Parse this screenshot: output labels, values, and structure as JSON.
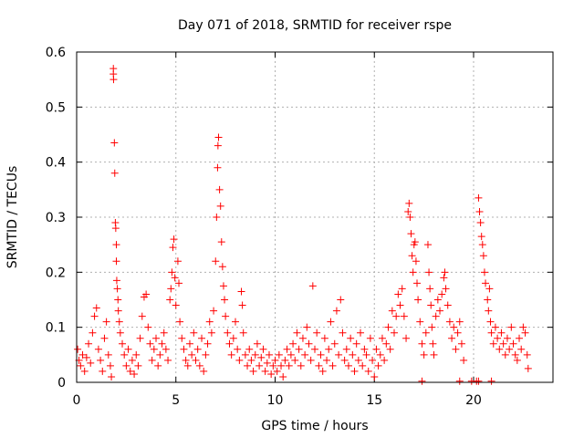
{
  "chart_data": {
    "type": "scatter",
    "title": "Day 071 of 2018, SRMTID for receiver rspe",
    "xlabel": "GPS time / hours",
    "ylabel": "SRMTID / TECUs",
    "xlim": [
      0,
      24
    ],
    "ylim": [
      0,
      0.6
    ],
    "xticks": [
      0,
      5,
      10,
      15,
      20
    ],
    "yticks": [
      0,
      0.1,
      0.2,
      0.3,
      0.4,
      0.5,
      0.6
    ],
    "xtick_labels": [
      "0",
      "5",
      "10",
      "15",
      "20"
    ],
    "ytick_labels": [
      "0",
      "0.1",
      "0.2",
      "0.3",
      "0.4",
      "0.5",
      "0.6"
    ],
    "grid": true,
    "marker": "+",
    "color": "#ff0000",
    "series": [
      {
        "name": "SRMTID",
        "points": [
          [
            0.05,
            0.06
          ],
          [
            0.12,
            0.04
          ],
          [
            0.2,
            0.03
          ],
          [
            0.3,
            0.05
          ],
          [
            0.4,
            0.02
          ],
          [
            0.5,
            0.045
          ],
          [
            0.6,
            0.07
          ],
          [
            0.7,
            0.035
          ],
          [
            0.8,
            0.09
          ],
          [
            0.9,
            0.12
          ],
          [
            1.0,
            0.135
          ],
          [
            1.1,
            0.06
          ],
          [
            1.2,
            0.04
          ],
          [
            1.3,
            0.02
          ],
          [
            1.4,
            0.08
          ],
          [
            1.5,
            0.11
          ],
          [
            1.6,
            0.05
          ],
          [
            1.7,
            0.03
          ],
          [
            1.75,
            0.01
          ],
          [
            1.85,
            0.57
          ],
          [
            1.85,
            0.56
          ],
          [
            1.86,
            0.55
          ],
          [
            1.9,
            0.435
          ],
          [
            1.92,
            0.38
          ],
          [
            1.95,
            0.29
          ],
          [
            1.97,
            0.28
          ],
          [
            2.0,
            0.25
          ],
          [
            2.0,
            0.22
          ],
          [
            2.02,
            0.185
          ],
          [
            2.05,
            0.17
          ],
          [
            2.08,
            0.15
          ],
          [
            2.1,
            0.13
          ],
          [
            2.15,
            0.11
          ],
          [
            2.2,
            0.09
          ],
          [
            2.3,
            0.07
          ],
          [
            2.4,
            0.05
          ],
          [
            2.5,
            0.03
          ],
          [
            2.6,
            0.06
          ],
          [
            2.7,
            0.02
          ],
          [
            2.8,
            0.04
          ],
          [
            2.9,
            0.015
          ],
          [
            3.0,
            0.05
          ],
          [
            3.1,
            0.03
          ],
          [
            3.2,
            0.08
          ],
          [
            3.3,
            0.12
          ],
          [
            3.4,
            0.155
          ],
          [
            3.5,
            0.16
          ],
          [
            3.6,
            0.1
          ],
          [
            3.7,
            0.07
          ],
          [
            3.8,
            0.04
          ],
          [
            3.9,
            0.06
          ],
          [
            4.0,
            0.08
          ],
          [
            4.1,
            0.03
          ],
          [
            4.2,
            0.05
          ],
          [
            4.3,
            0.07
          ],
          [
            4.4,
            0.09
          ],
          [
            4.5,
            0.06
          ],
          [
            4.6,
            0.04
          ],
          [
            4.7,
            0.15
          ],
          [
            4.75,
            0.17
          ],
          [
            4.8,
            0.2
          ],
          [
            4.85,
            0.245
          ],
          [
            4.9,
            0.26
          ],
          [
            4.95,
            0.19
          ],
          [
            5.0,
            0.14
          ],
          [
            5.1,
            0.22
          ],
          [
            5.15,
            0.18
          ],
          [
            5.2,
            0.11
          ],
          [
            5.3,
            0.08
          ],
          [
            5.4,
            0.06
          ],
          [
            5.5,
            0.04
          ],
          [
            5.6,
            0.03
          ],
          [
            5.7,
            0.07
          ],
          [
            5.8,
            0.05
          ],
          [
            5.9,
            0.09
          ],
          [
            6.0,
            0.04
          ],
          [
            6.1,
            0.06
          ],
          [
            6.2,
            0.03
          ],
          [
            6.3,
            0.08
          ],
          [
            6.4,
            0.02
          ],
          [
            6.5,
            0.05
          ],
          [
            6.6,
            0.07
          ],
          [
            6.7,
            0.11
          ],
          [
            6.8,
            0.09
          ],
          [
            6.9,
            0.13
          ],
          [
            7.0,
            0.22
          ],
          [
            7.05,
            0.3
          ],
          [
            7.1,
            0.39
          ],
          [
            7.12,
            0.43
          ],
          [
            7.15,
            0.445
          ],
          [
            7.2,
            0.35
          ],
          [
            7.25,
            0.32
          ],
          [
            7.3,
            0.255
          ],
          [
            7.35,
            0.21
          ],
          [
            7.4,
            0.175
          ],
          [
            7.45,
            0.15
          ],
          [
            7.5,
            0.12
          ],
          [
            7.6,
            0.09
          ],
          [
            7.7,
            0.07
          ],
          [
            7.8,
            0.05
          ],
          [
            7.9,
            0.08
          ],
          [
            8.0,
            0.11
          ],
          [
            8.1,
            0.06
          ],
          [
            8.2,
            0.04
          ],
          [
            8.3,
            0.165
          ],
          [
            8.35,
            0.14
          ],
          [
            8.4,
            0.09
          ],
          [
            8.5,
            0.05
          ],
          [
            8.6,
            0.03
          ],
          [
            8.7,
            0.06
          ],
          [
            8.8,
            0.04
          ],
          [
            8.9,
            0.02
          ],
          [
            9.0,
            0.05
          ],
          [
            9.1,
            0.07
          ],
          [
            9.2,
            0.03
          ],
          [
            9.3,
            0.045
          ],
          [
            9.4,
            0.06
          ],
          [
            9.5,
            0.02
          ],
          [
            9.6,
            0.035
          ],
          [
            9.7,
            0.05
          ],
          [
            9.8,
            0.015
          ],
          [
            9.9,
            0.03
          ],
          [
            10.0,
            0.04
          ],
          [
            10.1,
            0.02
          ],
          [
            10.2,
            0.05
          ],
          [
            10.3,
            0.03
          ],
          [
            10.4,
            0.01
          ],
          [
            10.5,
            0.04
          ],
          [
            10.6,
            0.06
          ],
          [
            10.7,
            0.03
          ],
          [
            10.8,
            0.05
          ],
          [
            10.9,
            0.07
          ],
          [
            11.0,
            0.04
          ],
          [
            11.1,
            0.09
          ],
          [
            11.2,
            0.06
          ],
          [
            11.3,
            0.03
          ],
          [
            11.4,
            0.08
          ],
          [
            11.5,
            0.05
          ],
          [
            11.6,
            0.1
          ],
          [
            11.7,
            0.07
          ],
          [
            11.8,
            0.04
          ],
          [
            11.9,
            0.175
          ],
          [
            12.0,
            0.06
          ],
          [
            12.1,
            0.09
          ],
          [
            12.2,
            0.03
          ],
          [
            12.3,
            0.05
          ],
          [
            12.4,
            0.02
          ],
          [
            12.5,
            0.08
          ],
          [
            12.6,
            0.04
          ],
          [
            12.7,
            0.06
          ],
          [
            12.8,
            0.11
          ],
          [
            12.9,
            0.03
          ],
          [
            13.0,
            0.07
          ],
          [
            13.1,
            0.13
          ],
          [
            13.2,
            0.05
          ],
          [
            13.3,
            0.15
          ],
          [
            13.4,
            0.09
          ],
          [
            13.5,
            0.04
          ],
          [
            13.6,
            0.06
          ],
          [
            13.7,
            0.03
          ],
          [
            13.8,
            0.08
          ],
          [
            13.9,
            0.05
          ],
          [
            14.0,
            0.02
          ],
          [
            14.1,
            0.07
          ],
          [
            14.2,
            0.04
          ],
          [
            14.3,
            0.09
          ],
          [
            14.4,
            0.03
          ],
          [
            14.5,
            0.06
          ],
          [
            14.6,
            0.05
          ],
          [
            14.7,
            0.02
          ],
          [
            14.8,
            0.08
          ],
          [
            14.9,
            0.04
          ],
          [
            15.0,
            0.01
          ],
          [
            15.1,
            0.06
          ],
          [
            15.2,
            0.03
          ],
          [
            15.3,
            0.05
          ],
          [
            15.4,
            0.08
          ],
          [
            15.5,
            0.04
          ],
          [
            15.6,
            0.07
          ],
          [
            15.7,
            0.1
          ],
          [
            15.8,
            0.06
          ],
          [
            15.9,
            0.13
          ],
          [
            16.0,
            0.09
          ],
          [
            16.1,
            0.12
          ],
          [
            16.2,
            0.16
          ],
          [
            16.3,
            0.14
          ],
          [
            16.4,
            0.17
          ],
          [
            16.5,
            0.12
          ],
          [
            16.6,
            0.08
          ],
          [
            16.7,
            0.31
          ],
          [
            16.75,
            0.325
          ],
          [
            16.8,
            0.3
          ],
          [
            16.85,
            0.27
          ],
          [
            16.9,
            0.23
          ],
          [
            16.95,
            0.2
          ],
          [
            17.0,
            0.25
          ],
          [
            17.05,
            0.255
          ],
          [
            17.1,
            0.22
          ],
          [
            17.15,
            0.18
          ],
          [
            17.2,
            0.15
          ],
          [
            17.3,
            0.11
          ],
          [
            17.4,
            0.07
          ],
          [
            17.5,
            0.05
          ],
          [
            17.6,
            0.09
          ],
          [
            17.7,
            0.25
          ],
          [
            17.75,
            0.2
          ],
          [
            17.8,
            0.17
          ],
          [
            17.85,
            0.14
          ],
          [
            17.9,
            0.1
          ],
          [
            17.95,
            0.07
          ],
          [
            18.0,
            0.05
          ],
          [
            18.1,
            0.12
          ],
          [
            18.2,
            0.15
          ],
          [
            18.3,
            0.13
          ],
          [
            18.4,
            0.16
          ],
          [
            18.5,
            0.19
          ],
          [
            18.55,
            0.2
          ],
          [
            18.6,
            0.17
          ],
          [
            18.7,
            0.14
          ],
          [
            18.8,
            0.11
          ],
          [
            18.9,
            0.08
          ],
          [
            19.0,
            0.1
          ],
          [
            19.1,
            0.06
          ],
          [
            19.2,
            0.09
          ],
          [
            19.3,
            0.11
          ],
          [
            19.4,
            0.07
          ],
          [
            19.5,
            0.04
          ],
          [
            17.4,
            0.002
          ],
          [
            19.3,
            0.002
          ],
          [
            19.9,
            0.002
          ],
          [
            20.15,
            0.002
          ],
          [
            20.25,
            0.002
          ],
          [
            20.9,
            0.002
          ],
          [
            20.25,
            0.335
          ],
          [
            20.3,
            0.31
          ],
          [
            20.35,
            0.29
          ],
          [
            20.4,
            0.265
          ],
          [
            20.45,
            0.25
          ],
          [
            20.5,
            0.23
          ],
          [
            20.55,
            0.2
          ],
          [
            20.6,
            0.18
          ],
          [
            20.7,
            0.15
          ],
          [
            20.75,
            0.13
          ],
          [
            20.8,
            0.17
          ],
          [
            20.85,
            0.11
          ],
          [
            20.9,
            0.09
          ],
          [
            21.0,
            0.07
          ],
          [
            21.1,
            0.1
          ],
          [
            21.2,
            0.08
          ],
          [
            21.3,
            0.06
          ],
          [
            21.4,
            0.09
          ],
          [
            21.5,
            0.07
          ],
          [
            21.6,
            0.05
          ],
          [
            21.7,
            0.08
          ],
          [
            21.8,
            0.06
          ],
          [
            21.9,
            0.1
          ],
          [
            22.0,
            0.07
          ],
          [
            22.1,
            0.05
          ],
          [
            22.2,
            0.04
          ],
          [
            22.3,
            0.08
          ],
          [
            22.4,
            0.06
          ],
          [
            22.5,
            0.1
          ],
          [
            22.6,
            0.09
          ],
          [
            22.7,
            0.05
          ],
          [
            22.75,
            0.025
          ]
        ]
      }
    ]
  }
}
